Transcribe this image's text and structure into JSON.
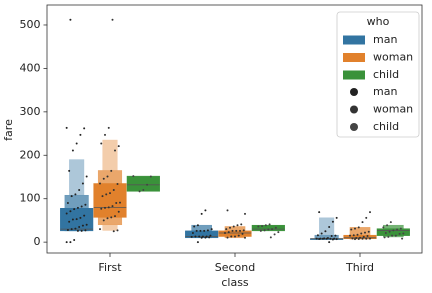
{
  "chart_data": {
    "type": "boxen",
    "x_label": "class",
    "y_label": "fare",
    "categories": [
      "First",
      "Second",
      "Third"
    ],
    "ylim": [
      -25,
      546
    ],
    "yticks": [
      0,
      100,
      200,
      300,
      400,
      500
    ],
    "legend": {
      "title": "who",
      "location": "upper right"
    },
    "series": [
      {
        "name": "man",
        "color": "#3274a1",
        "boxes": [
          {
            "levels": [
              [
                26,
                78
              ],
              [
                26,
                108
              ],
              [
                26,
                190
              ]
            ],
            "median": 30
          },
          {
            "levels": [
              [
                10,
                26
              ],
              [
                10,
                39
              ]
            ],
            "median": 13
          },
          {
            "levels": [
              [
                7.8,
                8.1
              ],
              [
                7,
                16
              ],
              [
                7,
                56
              ]
            ],
            "median": 8
          }
        ]
      },
      {
        "name": "woman",
        "color": "#e1812c",
        "boxes": [
          {
            "levels": [
              [
                57,
                135
              ],
              [
                40,
                165
              ],
              [
                27,
                235
              ]
            ],
            "median": 80
          },
          {
            "levels": [
              [
                13,
                26
              ],
              [
                10,
                36
              ]
            ],
            "median": 21
          },
          {
            "levels": [
              [
                7.8,
                16
              ],
              [
                7,
                34
              ]
            ],
            "median": 10
          }
        ]
      },
      {
        "name": "child",
        "color": "#3a923a",
        "boxes": [
          {
            "levels": [
              [
                117,
                152
              ]
            ],
            "median": 132
          },
          {
            "levels": [
              [
                26,
                39
              ]
            ],
            "median": 30
          },
          {
            "levels": [
              [
                15,
                31
              ],
              [
                12,
                39
              ]
            ],
            "median": 27
          }
        ]
      }
    ],
    "strip": [
      {
        "name": "man",
        "color": "#222222",
        "values": [
          [
            0,
            0,
            5,
            26,
            26,
            27,
            28,
            30,
            31,
            35,
            38,
            40,
            47,
            52,
            53,
            56,
            61,
            66,
            71,
            76,
            79,
            82,
            86,
            90,
            106,
            110,
            120,
            135,
            151,
            164,
            211,
            227,
            247,
            262,
            263,
            512
          ],
          [
            0,
            10,
            10.5,
            11,
            12,
            13,
            13,
            13,
            13,
            15,
            21,
            26,
            26,
            26,
            27,
            30,
            36,
            39,
            65,
            73
          ],
          [
            0,
            6,
            7,
            7.2,
            7.8,
            7.8,
            7.9,
            8,
            8,
            8.1,
            8.7,
            9.5,
            14,
            15,
            16,
            20,
            25,
            35,
            47,
            56,
            69
          ]
        ]
      },
      {
        "name": "woman",
        "color": "#333333",
        "values": [
          [
            25,
            27,
            30,
            50,
            55,
            57,
            60,
            70,
            77,
            79,
            80,
            83,
            90,
            91,
            106,
            110,
            113,
            120,
            134,
            135,
            146,
            151,
            164,
            211,
            221,
            227,
            247,
            263,
            512
          ],
          [
            10,
            10.5,
            13,
            13,
            15,
            19,
            21,
            23,
            26,
            26,
            26,
            27,
            30,
            33,
            36,
            39,
            41,
            65,
            73
          ],
          [
            7,
            7.2,
            7.8,
            7.9,
            8,
            8.5,
            9.5,
            10,
            12,
            14,
            15,
            16,
            17,
            20,
            22,
            24,
            29,
            31,
            34,
            46,
            56,
            69
          ]
        ]
      },
      {
        "name": "child",
        "color": "#444444",
        "values": [
          [
            117,
            120,
            132,
            151,
            152
          ],
          [
            11,
            18,
            23,
            26,
            27,
            29,
            30,
            33,
            36,
            37,
            39,
            41
          ],
          [
            8,
            11,
            12,
            15,
            15,
            19,
            20,
            21,
            24,
            27,
            29,
            31,
            34,
            39,
            46
          ]
        ]
      }
    ]
  }
}
